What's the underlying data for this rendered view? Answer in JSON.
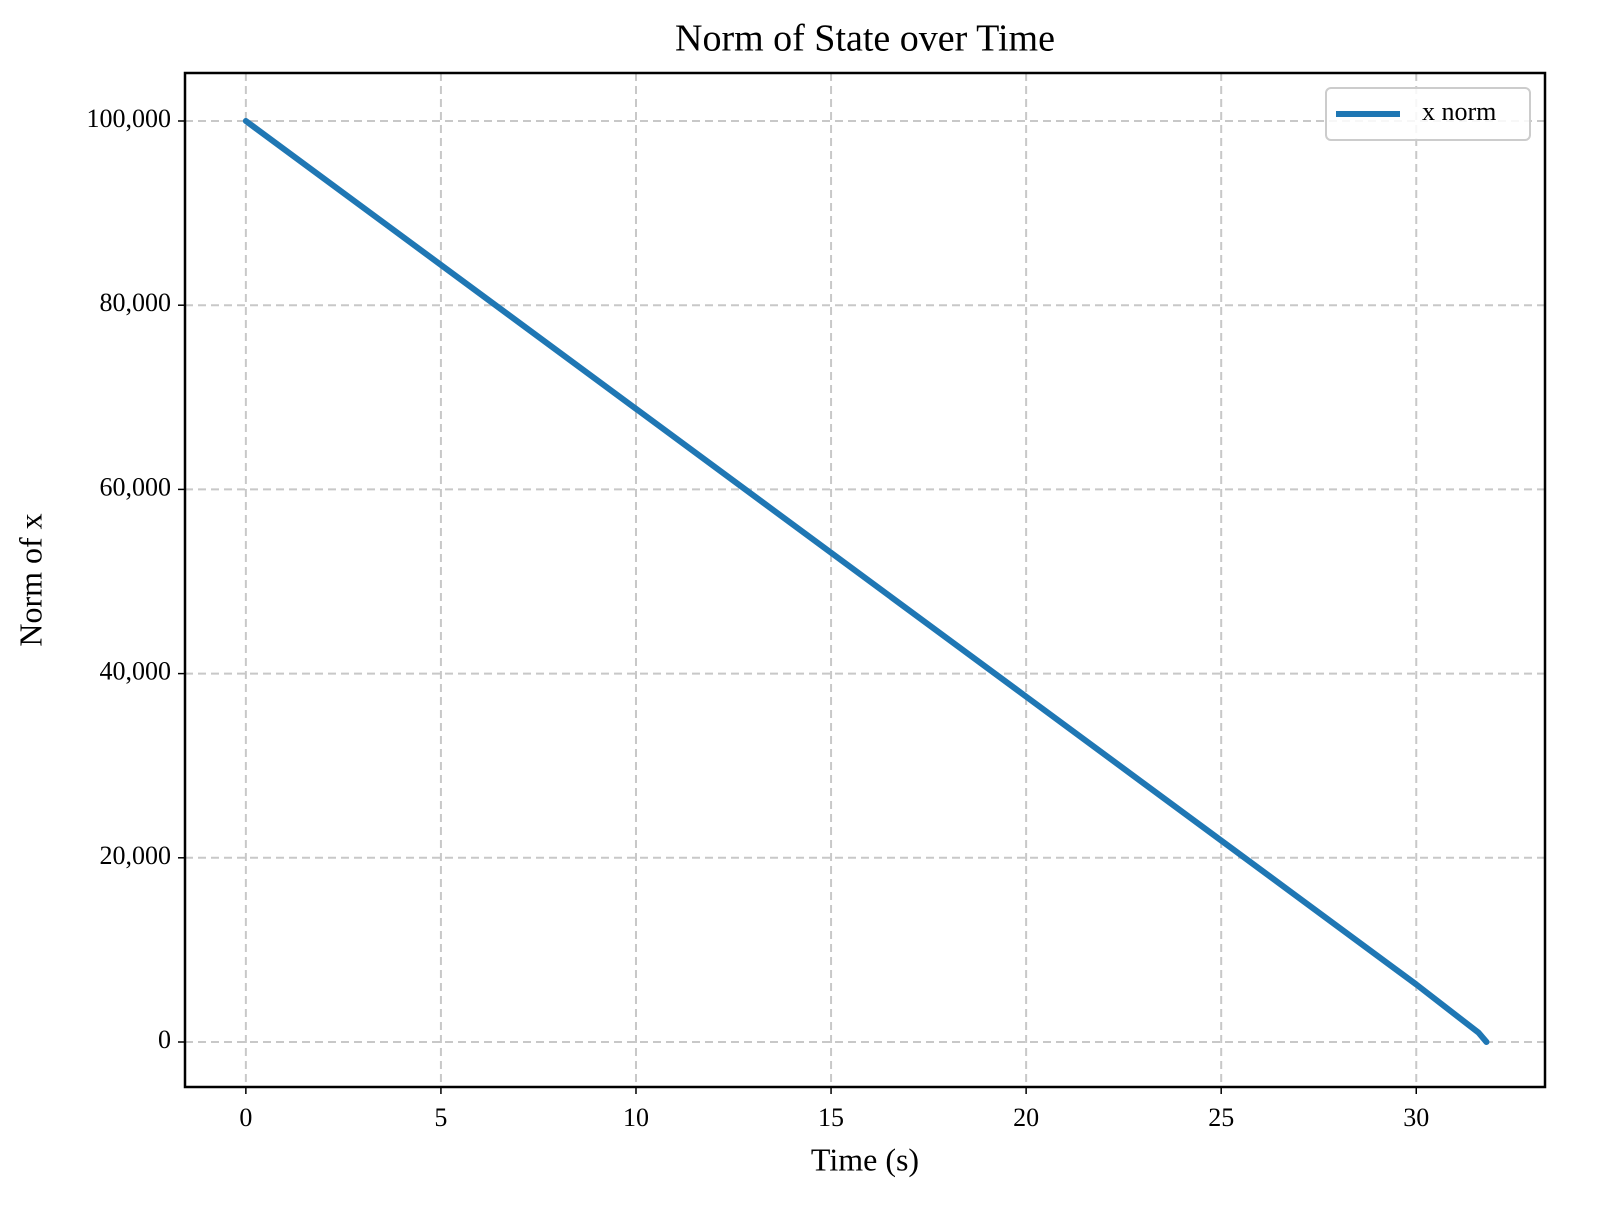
{
  "chart_data": {
    "type": "line",
    "title": "Norm of State over Time",
    "x_label": "Time (s)",
    "y_label": "Norm of x",
    "x": [
      0,
      10,
      20,
      30,
      31.6,
      31.8
    ],
    "series": [
      {
        "name": "x norm",
        "color": "#1f77b4",
        "values": [
          100000,
          68750,
          37500,
          6250,
          1000,
          0
        ]
      }
    ],
    "xlim": [
      -1.56,
      33.3
    ],
    "ylim": [
      -4886,
      105212
    ],
    "xticks": [
      0,
      5,
      10,
      15,
      20,
      25,
      30
    ],
    "yticks": [
      0,
      {
        "value": 20000,
        "label": "20,000"
      },
      {
        "value": 40000,
        "label": "40,000"
      },
      {
        "value": 60000,
        "label": "60,000"
      },
      {
        "value": 80000,
        "label": "80,000"
      },
      {
        "value": 100000,
        "label": "100,000"
      }
    ],
    "grid": true,
    "legend": "upper right"
  }
}
